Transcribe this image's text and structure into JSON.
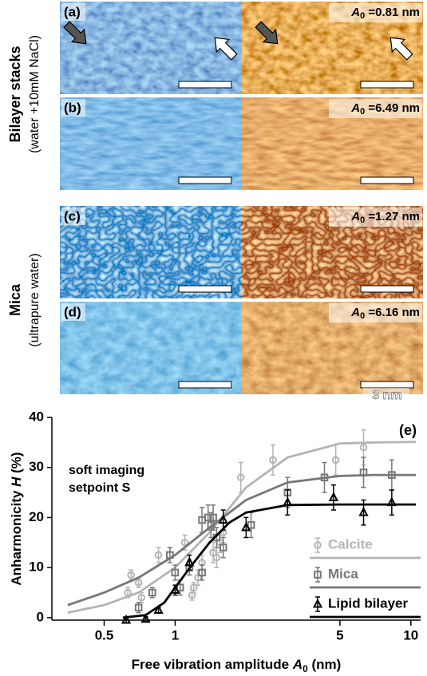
{
  "panels": {
    "side_labels": [
      {
        "title": "Bilayer stacks",
        "subtitle": "(water +10mM NaCl)"
      },
      {
        "title": "Mica",
        "subtitle": "(ultrapure water)"
      }
    ],
    "rows": [
      {
        "label": "(a)",
        "symbol": "A",
        "subscript": "0",
        "value_text": " =0.81 nm"
      },
      {
        "label": "(b)",
        "symbol": "A",
        "subscript": "0",
        "value_text": " =6.49 nm"
      },
      {
        "label": "(c)",
        "symbol": "A",
        "subscript": "0",
        "value_text": " =1.27 nm"
      },
      {
        "label": "(d)",
        "symbol": "A",
        "subscript": "0",
        "value_text": " =6.16 nm"
      }
    ],
    "scale_label": "3 nm"
  },
  "chart_data": {
    "type": "scatter",
    "panel_label": "(e)",
    "annotation": [
      "soft imaging",
      "setpoint S"
    ],
    "x_label": [
      "Free vibration amplitude ",
      "A",
      "0",
      " (nm)"
    ],
    "y_label": [
      "Anharmonicity ",
      "H",
      " (%)"
    ],
    "log_x": true,
    "xlim": [
      0.3,
      11
    ],
    "xticks": [
      0.5,
      1,
      5,
      10
    ],
    "ylim": [
      -0.5,
      40
    ],
    "yticks": [
      0,
      10,
      20,
      30,
      40
    ],
    "legend": "lower right",
    "series": [
      {
        "name": "Calcite",
        "color": "#b4b4b4",
        "marker": "circle",
        "x": [
          0.63,
          0.65,
          0.7,
          0.72,
          0.85,
          1.1,
          1.18,
          1.2,
          1.25,
          1.3,
          1.45,
          1.5,
          1.55,
          1.6,
          1.9,
          2.6,
          4.8,
          6.3
        ],
        "values": [
          5,
          8.5,
          7,
          4,
          12.5,
          15,
          4.5,
          6,
          8,
          11,
          13,
          12,
          15,
          17,
          28,
          31.5,
          31.5,
          34
        ],
        "errors": [
          1,
          1,
          1,
          1,
          1.5,
          1.5,
          1,
          1,
          1.5,
          1.5,
          2,
          2,
          2,
          2,
          3,
          3,
          3,
          3.5
        ],
        "fit": {
          "x": [
            0.35,
            0.5,
            0.7,
            1,
            1.4,
            2,
            3,
            5,
            7,
            10.5
          ],
          "values": [
            1,
            2.5,
            5,
            10,
            17,
            26,
            32,
            34.8,
            35,
            35.1
          ]
        }
      },
      {
        "name": "Mica",
        "color": "#777777",
        "marker": "square",
        "x": [
          0.7,
          0.8,
          0.95,
          1.0,
          1.05,
          1.15,
          1.3,
          1.3,
          1.38,
          1.42,
          1.45,
          1.5,
          1.6,
          2.1,
          3.0,
          4.3,
          6.3,
          8.3
        ],
        "values": [
          2,
          5,
          12.5,
          9,
          6,
          10,
          9,
          19.5,
          20,
          18.5,
          20,
          16,
          14,
          18.5,
          25,
          28,
          29,
          28.5
        ],
        "errors": [
          1,
          1,
          1.5,
          1.5,
          1.5,
          1.5,
          1.5,
          2.5,
          2.5,
          2.5,
          2.5,
          2,
          2,
          2.5,
          3,
          3,
          3,
          3
        ],
        "fit": {
          "x": [
            0.35,
            0.5,
            0.7,
            1,
            1.4,
            2,
            3,
            5,
            7,
            10.5
          ],
          "values": [
            2.5,
            5,
            8,
            12.5,
            18,
            23.5,
            27,
            28.3,
            28.5,
            28.5
          ]
        }
      },
      {
        "name": "Lipid bilayer",
        "color": "#000000",
        "marker": "triangle",
        "x": [
          0.62,
          0.75,
          0.85,
          1.0,
          1.15,
          1.6,
          2.0,
          3.0,
          4.7,
          6.3,
          8.3
        ],
        "values": [
          -0.5,
          -0.3,
          1.5,
          5.5,
          11,
          19.5,
          18,
          23,
          24,
          21,
          23
        ],
        "errors": [
          0.5,
          0.5,
          0.5,
          1,
          1.5,
          2,
          2,
          2.5,
          2.5,
          2.5,
          2.5
        ],
        "fit": {
          "x": [
            0.6,
            0.75,
            0.9,
            1,
            1.2,
            1.4,
            1.7,
            2,
            3,
            5,
            10.5
          ],
          "values": [
            0,
            0.5,
            3,
            6,
            11,
            15,
            19,
            21,
            22.5,
            22.6,
            22.6
          ]
        }
      }
    ]
  }
}
